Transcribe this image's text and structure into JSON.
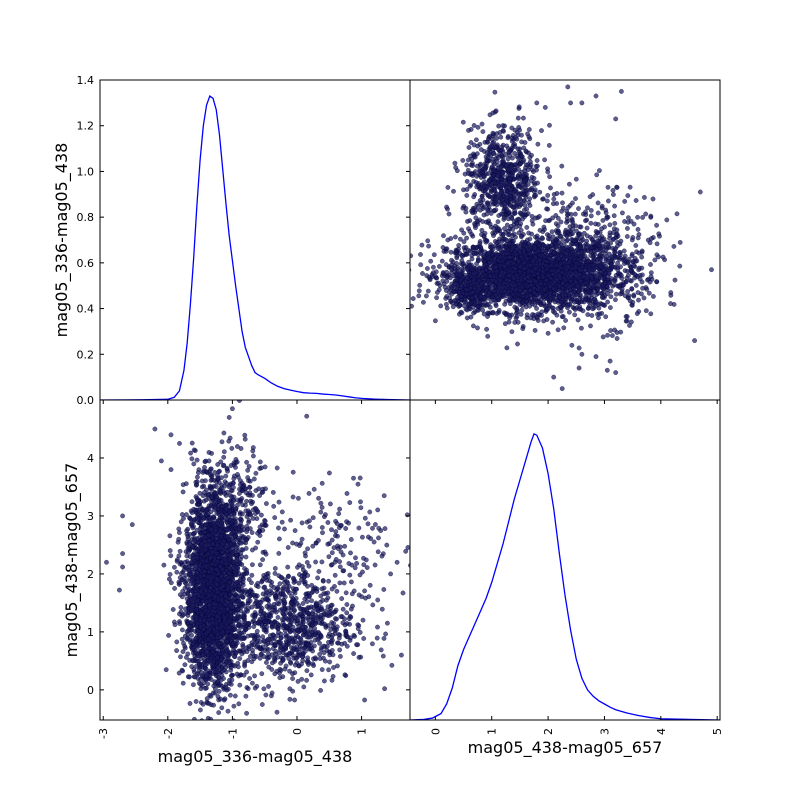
{
  "chart_data": {
    "type": "scatter",
    "grid": false,
    "colors": {
      "kde_line": "#0000ff",
      "points": "#1a1a5e",
      "point_edge": "#000033"
    },
    "variables": [
      "mag05_336-mag05_438",
      "mag05_438-mag05_657"
    ],
    "panels": [
      {
        "kind": "kde",
        "row": 0,
        "col": 0,
        "variable": "mag05_336-mag05_438",
        "xlim": [
          -3.05,
          1.75
        ],
        "ylabel": "mag05_336-mag05_438",
        "yticks": [
          {
            "value": 0.0,
            "label": "0.0"
          },
          {
            "value": 0.2,
            "label": "0.2"
          },
          {
            "value": 0.4,
            "label": "0.4"
          },
          {
            "value": 0.6,
            "label": "0.6"
          },
          {
            "value": 0.8,
            "label": "0.8"
          },
          {
            "value": 1.0,
            "label": "1.0"
          },
          {
            "value": 1.2,
            "label": "1.2"
          },
          {
            "value": 1.4,
            "label": "1.4"
          }
        ],
        "ylim": [
          0,
          1.4
        ],
        "curve": [
          [
            -3.05,
            0.0
          ],
          [
            -2.4,
            0.001
          ],
          [
            -2.0,
            0.003
          ],
          [
            -1.9,
            0.012
          ],
          [
            -1.82,
            0.04
          ],
          [
            -1.75,
            0.13
          ],
          [
            -1.7,
            0.25
          ],
          [
            -1.65,
            0.42
          ],
          [
            -1.6,
            0.62
          ],
          [
            -1.55,
            0.85
          ],
          [
            -1.5,
            1.05
          ],
          [
            -1.45,
            1.2
          ],
          [
            -1.4,
            1.29
          ],
          [
            -1.35,
            1.33
          ],
          [
            -1.3,
            1.32
          ],
          [
            -1.25,
            1.27
          ],
          [
            -1.2,
            1.16
          ],
          [
            -1.15,
            1.01
          ],
          [
            -1.1,
            0.86
          ],
          [
            -1.05,
            0.72
          ],
          [
            -1.0,
            0.61
          ],
          [
            -0.95,
            0.5
          ],
          [
            -0.9,
            0.4
          ],
          [
            -0.85,
            0.3
          ],
          [
            -0.8,
            0.23
          ],
          [
            -0.75,
            0.19
          ],
          [
            -0.7,
            0.15
          ],
          [
            -0.65,
            0.12
          ],
          [
            -0.6,
            0.11
          ],
          [
            -0.5,
            0.095
          ],
          [
            -0.4,
            0.075
          ],
          [
            -0.3,
            0.06
          ],
          [
            -0.2,
            0.05
          ],
          [
            -0.1,
            0.043
          ],
          [
            0.0,
            0.037
          ],
          [
            0.1,
            0.032
          ],
          [
            0.2,
            0.03
          ],
          [
            0.3,
            0.029
          ],
          [
            0.4,
            0.026
          ],
          [
            0.5,
            0.024
          ],
          [
            0.6,
            0.022
          ],
          [
            0.7,
            0.018
          ],
          [
            0.8,
            0.014
          ],
          [
            0.9,
            0.01
          ],
          [
            1.0,
            0.007
          ],
          [
            1.2,
            0.004
          ],
          [
            1.4,
            0.002
          ],
          [
            1.75,
            0.0
          ]
        ]
      },
      {
        "kind": "scatter",
        "row": 0,
        "col": 1,
        "xvar": "mag05_438-mag05_657",
        "yvar": "mag05_336-mag05_438",
        "xlim": [
          -0.45,
          5.05
        ],
        "ylim": [
          0,
          1.4
        ],
        "clusters": [
          {
            "cx": 1.7,
            "cy": 0.55,
            "sx": 0.75,
            "sy": 0.08,
            "n": 2600
          },
          {
            "cx": 1.2,
            "cy": 0.95,
            "sx": 0.35,
            "sy": 0.12,
            "n": 700
          },
          {
            "cx": 2.8,
            "cy": 0.62,
            "sx": 0.6,
            "sy": 0.14,
            "n": 500
          },
          {
            "cx": 0.6,
            "cy": 0.48,
            "sx": 0.15,
            "sy": 0.04,
            "n": 200
          }
        ],
        "outliers": [
          [
            -0.05,
            0.54
          ],
          [
            4.7,
            0.91
          ],
          [
            4.9,
            0.57
          ],
          [
            4.6,
            0.26
          ],
          [
            2.85,
            1.33
          ],
          [
            2.35,
            1.37
          ],
          [
            2.4,
            1.3
          ],
          [
            2.6,
            1.3
          ],
          [
            1.8,
            1.3
          ],
          [
            1.95,
            1.28
          ],
          [
            3.3,
            1.35
          ],
          [
            3.2,
            1.23
          ],
          [
            2.1,
            0.1
          ],
          [
            2.55,
            0.14
          ],
          [
            2.25,
            0.05
          ],
          [
            2.6,
            0.2
          ],
          [
            3.2,
            0.12
          ],
          [
            3.05,
            0.13
          ],
          [
            3.1,
            0.17
          ],
          [
            2.85,
            0.19
          ]
        ]
      },
      {
        "kind": "scatter",
        "row": 1,
        "col": 0,
        "xvar": "mag05_336-mag05_438",
        "yvar": "mag05_438-mag05_657",
        "xlim": [
          -3.05,
          1.75
        ],
        "ylim": [
          -0.52,
          5.0
        ],
        "ylabel": "mag05_438-mag05_657",
        "xlabel": "mag05_336-mag05_438",
        "xticks": [
          {
            "value": -3,
            "label": "-3"
          },
          {
            "value": -2,
            "label": "-2"
          },
          {
            "value": -1,
            "label": "-1"
          },
          {
            "value": 0,
            "label": "0"
          },
          {
            "value": 1,
            "label": "1"
          }
        ],
        "yticks": [
          {
            "value": 0,
            "label": "0"
          },
          {
            "value": 1,
            "label": "1"
          },
          {
            "value": 2,
            "label": "2"
          },
          {
            "value": 3,
            "label": "3"
          },
          {
            "value": 4,
            "label": "4"
          }
        ],
        "clusters": [
          {
            "cx": -1.3,
            "cy": 1.7,
            "sx": 0.22,
            "sy": 0.8,
            "n": 2600
          },
          {
            "cx": -0.2,
            "cy": 1.1,
            "sx": 0.55,
            "sy": 0.5,
            "n": 900
          },
          {
            "cx": -1.0,
            "cy": 3.2,
            "sx": 0.3,
            "sy": 0.5,
            "n": 300
          },
          {
            "cx": 0.6,
            "cy": 2.5,
            "sx": 0.45,
            "sy": 0.6,
            "n": 150
          }
        ],
        "outliers": [
          [
            -2.95,
            2.2
          ],
          [
            -2.75,
            1.72
          ],
          [
            -2.7,
            2.35
          ],
          [
            -2.7,
            2.12
          ],
          [
            -2.7,
            3.0
          ],
          [
            -2.55,
            2.85
          ],
          [
            -2.2,
            4.5
          ],
          [
            -2.1,
            3.95
          ],
          [
            -1.95,
            4.4
          ],
          [
            -1.95,
            3.8
          ],
          [
            -1.0,
            4.85
          ],
          [
            -1.05,
            4.7
          ],
          [
            0.15,
            4.72
          ],
          [
            1.55,
            2.2
          ],
          [
            1.45,
            2.0
          ],
          [
            1.4,
            1.15
          ],
          [
            1.35,
            3.35
          ],
          [
            1.25,
            1.55
          ]
        ]
      },
      {
        "kind": "kde",
        "row": 1,
        "col": 1,
        "variable": "mag05_438-mag05_657",
        "xlim": [
          -0.45,
          5.05
        ],
        "xlabel": "mag05_438-mag05_657",
        "xticks": [
          {
            "value": 0,
            "label": "0"
          },
          {
            "value": 1,
            "label": "1"
          },
          {
            "value": 2,
            "label": "2"
          },
          {
            "value": 3,
            "label": "3"
          },
          {
            "value": 4,
            "label": "4"
          },
          {
            "value": 5,
            "label": "5"
          }
        ],
        "ylim": [
          0,
          0.5
        ],
        "curve": [
          [
            -0.45,
            0.0
          ],
          [
            -0.2,
            0.001
          ],
          [
            -0.05,
            0.003
          ],
          [
            0.1,
            0.01
          ],
          [
            0.2,
            0.025
          ],
          [
            0.3,
            0.05
          ],
          [
            0.4,
            0.085
          ],
          [
            0.5,
            0.11
          ],
          [
            0.6,
            0.13
          ],
          [
            0.7,
            0.15
          ],
          [
            0.8,
            0.17
          ],
          [
            0.9,
            0.19
          ],
          [
            1.0,
            0.215
          ],
          [
            1.1,
            0.245
          ],
          [
            1.2,
            0.275
          ],
          [
            1.3,
            0.31
          ],
          [
            1.4,
            0.345
          ],
          [
            1.5,
            0.375
          ],
          [
            1.6,
            0.405
          ],
          [
            1.7,
            0.435
          ],
          [
            1.75,
            0.447
          ],
          [
            1.8,
            0.445
          ],
          [
            1.9,
            0.425
          ],
          [
            2.0,
            0.385
          ],
          [
            2.1,
            0.33
          ],
          [
            2.2,
            0.26
          ],
          [
            2.3,
            0.195
          ],
          [
            2.4,
            0.14
          ],
          [
            2.5,
            0.095
          ],
          [
            2.6,
            0.065
          ],
          [
            2.7,
            0.047
          ],
          [
            2.8,
            0.037
          ],
          [
            2.9,
            0.03
          ],
          [
            3.0,
            0.025
          ],
          [
            3.1,
            0.02
          ],
          [
            3.2,
            0.016
          ],
          [
            3.4,
            0.011
          ],
          [
            3.6,
            0.007
          ],
          [
            3.8,
            0.004
          ],
          [
            4.0,
            0.002
          ],
          [
            4.5,
            0.001
          ],
          [
            5.05,
            0.0
          ]
        ]
      }
    ]
  }
}
